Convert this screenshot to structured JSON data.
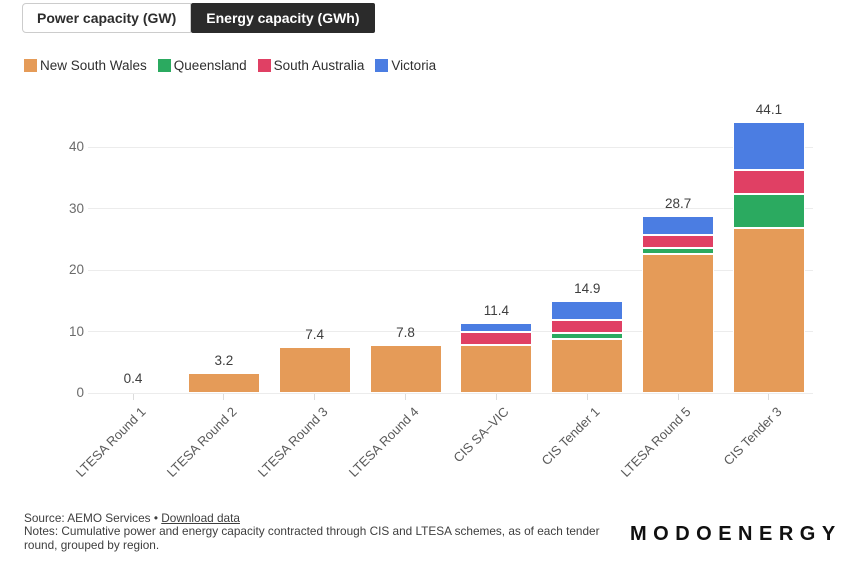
{
  "tabs": {
    "power_label": "Power capacity (GW)",
    "energy_label": "Energy capacity (GWh)",
    "active": "Energy capacity (GWh)"
  },
  "footer": {
    "source_text": "Source: AEMO Services",
    "separator": "•",
    "download_label": "Download data",
    "notes_text": "Notes: Cumulative power and energy capacity contracted through CIS and LTESA schemes, as of each tender round, grouped by region.",
    "logo_text": "MODOENERGY"
  },
  "chart_data": {
    "type": "bar",
    "stacked": true,
    "title": "",
    "xlabel": "",
    "ylabel": "",
    "grid": true,
    "legend_position": "top",
    "y_ticks": [
      0,
      10,
      20,
      30,
      40
    ],
    "ylim": [
      0,
      46
    ],
    "categories": [
      "LTESA Round 1",
      "LTESA Round 2",
      "LTESA Round 3",
      "LTESA Round 4",
      "CIS SA–VIC",
      "CIS Tender 1",
      "LTESA Round 5",
      "CIS Tender 3"
    ],
    "series": [
      {
        "name": "New South Wales",
        "color": "#E59B58",
        "values": [
          0.4,
          3.2,
          7.4,
          7.8,
          7.8,
          8.8,
          22.6,
          26.9
        ]
      },
      {
        "name": "Queensland",
        "color": "#2BAA60",
        "values": [
          0,
          0,
          0,
          0,
          0,
          1.0,
          1.0,
          5.4
        ]
      },
      {
        "name": "South Australia",
        "color": "#E04064",
        "values": [
          0,
          0,
          0,
          0,
          2.1,
          2.1,
          2.1,
          3.9
        ]
      },
      {
        "name": "Victoria",
        "color": "#4B7DE2",
        "values": [
          0,
          0,
          0,
          0,
          1.5,
          3.0,
          3.0,
          7.9
        ]
      }
    ],
    "totals": [
      0.4,
      3.2,
      7.4,
      7.8,
      11.4,
      14.9,
      28.7,
      44.1
    ],
    "total_labels": [
      "0.4",
      "3.2",
      "7.4",
      "7.8",
      "11.4",
      "14.9",
      "28.7",
      "44.1"
    ]
  }
}
